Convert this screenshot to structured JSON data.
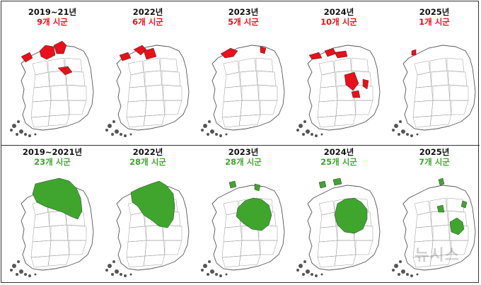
{
  "colors": {
    "red": "#e8101a",
    "green": "#3fa52d",
    "border": "#9a9a9a"
  },
  "top_row": [
    {
      "year": "2019~21년",
      "count": "9개 시군"
    },
    {
      "year": "2022년",
      "count": "6개 시군"
    },
    {
      "year": "2023년",
      "count": "5개 시군"
    },
    {
      "year": "2024년",
      "count": "10개 시군"
    },
    {
      "year": "2025년",
      "count": "1개 시군"
    }
  ],
  "bottom_row": [
    {
      "year": "2019~2021년",
      "count": "23개 시군"
    },
    {
      "year": "2022년",
      "count": "28개 시군"
    },
    {
      "year": "2023년",
      "count": "28개 시군"
    },
    {
      "year": "2024년",
      "count": "25개 시군"
    },
    {
      "year": "2025년",
      "count": "7개 시군"
    }
  ],
  "watermark": "뉴시스"
}
